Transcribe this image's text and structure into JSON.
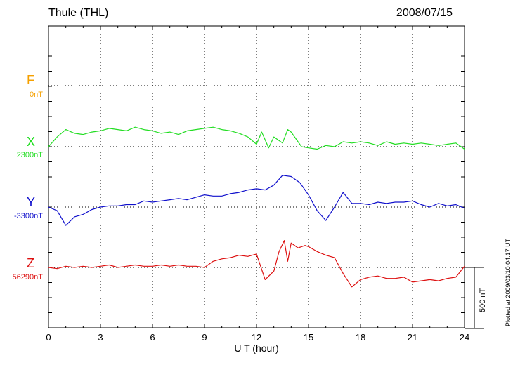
{
  "header": {
    "station": "Thule (THL)",
    "date": "2008/07/15"
  },
  "components": [
    {
      "letter": "F",
      "baseline": "0nT",
      "color": "#f5a000"
    },
    {
      "letter": "X",
      "baseline": "2300nT",
      "color": "#22dd22"
    },
    {
      "letter": "Y",
      "baseline": "-3300nT",
      "color": "#1010cc"
    },
    {
      "letter": "Z",
      "baseline": "56290nT",
      "color": "#dd1010"
    }
  ],
  "scale_bar": {
    "label": "500 nT"
  },
  "footer": {
    "plotted": "Plotted at 2009/03/10 04:17 UT"
  },
  "chart_data": {
    "type": "line",
    "xlabel": "U T (hour)",
    "xlim": [
      0,
      24
    ],
    "xticks": [
      "0",
      "3",
      "6",
      "9",
      "12",
      "15",
      "18",
      "21",
      "24"
    ],
    "grid": true,
    "series": [
      {
        "name": "X",
        "color": "#22dd22",
        "x": [
          0,
          0.5,
          1,
          1.5,
          2,
          2.5,
          3,
          3.5,
          4,
          4.5,
          5,
          5.5,
          6,
          6.5,
          7,
          7.5,
          8,
          8.5,
          9,
          9.5,
          10,
          10.5,
          11,
          11.5,
          12,
          12.3,
          12.7,
          13,
          13.5,
          13.8,
          14,
          14.3,
          14.6,
          15,
          15.5,
          16,
          16.5,
          17,
          17.5,
          18,
          18.5,
          19,
          19.5,
          20,
          20.5,
          21,
          21.5,
          22,
          22.5,
          23,
          23.5,
          24
        ],
        "y": [
          2300,
          2380,
          2440,
          2410,
          2400,
          2420,
          2430,
          2450,
          2440,
          2430,
          2460,
          2440,
          2430,
          2410,
          2420,
          2400,
          2430,
          2440,
          2450,
          2460,
          2440,
          2430,
          2410,
          2380,
          2320,
          2420,
          2290,
          2380,
          2330,
          2440,
          2420,
          2360,
          2300,
          2290,
          2280,
          2310,
          2300,
          2340,
          2330,
          2340,
          2330,
          2310,
          2340,
          2320,
          2330,
          2320,
          2330,
          2320,
          2310,
          2320,
          2330,
          2280
        ]
      },
      {
        "name": "Y",
        "color": "#1010cc",
        "x": [
          0,
          0.5,
          1,
          1.5,
          2,
          2.5,
          3,
          3.5,
          4,
          4.5,
          5,
          5.5,
          6,
          6.5,
          7,
          7.5,
          8,
          8.5,
          9,
          9.5,
          10,
          10.5,
          11,
          11.5,
          12,
          12.5,
          13,
          13.5,
          14,
          14.5,
          15,
          15.5,
          16,
          16.5,
          17,
          17.5,
          18,
          18.5,
          19,
          19.5,
          20,
          20.5,
          21,
          21.5,
          22,
          22.5,
          23,
          23.5,
          24
        ],
        "y": [
          -3300,
          -3330,
          -3450,
          -3380,
          -3360,
          -3320,
          -3300,
          -3290,
          -3290,
          -3280,
          -3280,
          -3250,
          -3260,
          -3250,
          -3240,
          -3230,
          -3240,
          -3220,
          -3200,
          -3210,
          -3210,
          -3190,
          -3180,
          -3160,
          -3150,
          -3160,
          -3120,
          -3040,
          -3050,
          -3100,
          -3200,
          -3330,
          -3410,
          -3300,
          -3180,
          -3270,
          -3270,
          -3280,
          -3260,
          -3270,
          -3260,
          -3260,
          -3250,
          -3280,
          -3300,
          -3270,
          -3290,
          -3280,
          -3310
        ]
      },
      {
        "name": "Z",
        "color": "#dd1010",
        "x": [
          0,
          0.5,
          1,
          1.5,
          2,
          2.5,
          3,
          3.5,
          4,
          4.5,
          5,
          5.5,
          6,
          6.5,
          7,
          7.5,
          8,
          8.5,
          9,
          9.5,
          10,
          10.5,
          11,
          11.5,
          12,
          12.5,
          13,
          13.3,
          13.6,
          13.8,
          14,
          14.4,
          14.8,
          15,
          15.5,
          16,
          16.5,
          17,
          17.5,
          18,
          18.5,
          19,
          19.5,
          20,
          20.5,
          21,
          21.5,
          22,
          22.5,
          23,
          23.5,
          24
        ],
        "y": [
          56290,
          56280,
          56300,
          56290,
          56300,
          56290,
          56300,
          56310,
          56290,
          56300,
          56310,
          56300,
          56300,
          56310,
          56300,
          56310,
          56300,
          56300,
          56290,
          56340,
          56360,
          56370,
          56390,
          56380,
          56400,
          56190,
          56260,
          56420,
          56510,
          56340,
          56490,
          56450,
          56470,
          56460,
          56420,
          56390,
          56370,
          56240,
          56130,
          56190,
          56210,
          56220,
          56200,
          56200,
          56210,
          56170,
          56180,
          56190,
          56180,
          56200,
          56210,
          56300
        ]
      }
    ],
    "baselines": {
      "F": 0,
      "X": 2300,
      "Y": -3300,
      "Z": 56290
    },
    "scale_nT": 500
  }
}
